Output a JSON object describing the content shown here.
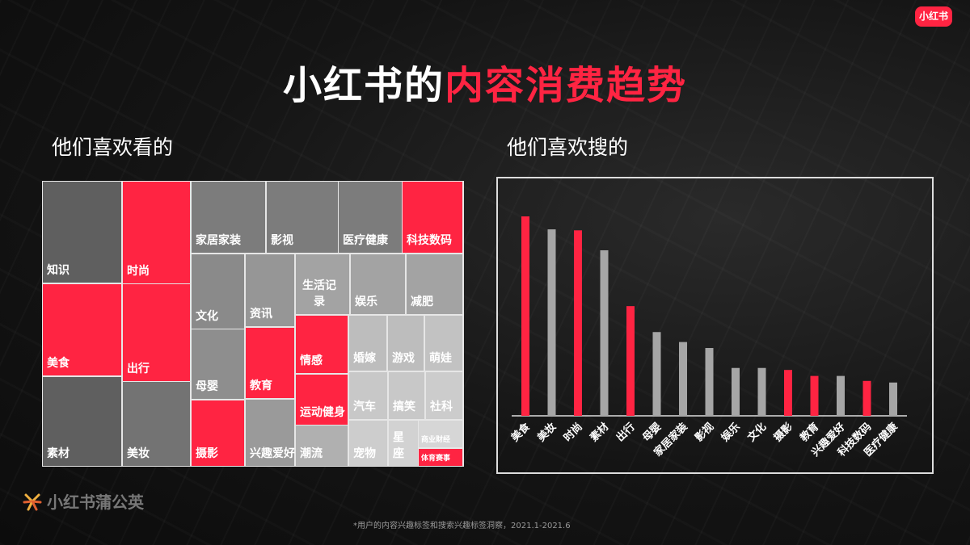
{
  "header": {
    "title_plain": "小红书的",
    "title_highlight": "内容消费趋势",
    "brand_badge": "小红书"
  },
  "left_panel": {
    "subtitle": "他们喜欢看的"
  },
  "right_panel": {
    "subtitle": "他们喜欢搜的"
  },
  "colors": {
    "highlight": "#ff2442",
    "neutral": "#a6a6a6"
  },
  "treemap": {
    "tiles": [
      {
        "label": "知识",
        "highlight": false
      },
      {
        "label": "美食",
        "highlight": true
      },
      {
        "label": "素材",
        "highlight": false
      },
      {
        "label": "时尚",
        "highlight": true
      },
      {
        "label": "出行",
        "highlight": true
      },
      {
        "label": "美妆",
        "highlight": false
      },
      {
        "label": "家居家装",
        "highlight": false
      },
      {
        "label": "影视",
        "highlight": false
      },
      {
        "label": "医疗健康",
        "highlight": false
      },
      {
        "label": "科技数码",
        "highlight": true
      },
      {
        "label": "文化",
        "highlight": false
      },
      {
        "label": "资讯",
        "highlight": false
      },
      {
        "label": "生活记录",
        "highlight": false
      },
      {
        "label": "娱乐",
        "highlight": false
      },
      {
        "label": "减肥",
        "highlight": false
      },
      {
        "label": "母婴",
        "highlight": false
      },
      {
        "label": "教育",
        "highlight": true
      },
      {
        "label": "摄影",
        "highlight": true
      },
      {
        "label": "兴趣爱好",
        "highlight": false
      },
      {
        "label": "情感",
        "highlight": true
      },
      {
        "label": "运动健身",
        "highlight": true
      },
      {
        "label": "潮流",
        "highlight": false
      },
      {
        "label": "婚嫁",
        "highlight": false
      },
      {
        "label": "游戏",
        "highlight": false
      },
      {
        "label": "萌娃",
        "highlight": false
      },
      {
        "label": "汽车",
        "highlight": false
      },
      {
        "label": "搞笑",
        "highlight": false
      },
      {
        "label": "社科",
        "highlight": false
      },
      {
        "label": "宠物",
        "highlight": false
      },
      {
        "label": "星座",
        "highlight": false
      },
      {
        "label": "商业财经",
        "highlight": false
      },
      {
        "label": "体育赛事",
        "highlight": true
      }
    ]
  },
  "chart_data": {
    "type": "bar",
    "title": "他们喜欢搜的",
    "xlabel": "",
    "ylabel": "",
    "categories": [
      "美食",
      "美妆",
      "时尚",
      "素材",
      "出行",
      "母婴",
      "家居家装",
      "影视",
      "娱乐",
      "文化",
      "摄影",
      "教育",
      "兴趣爱好",
      "科技数码",
      "医疗健康"
    ],
    "values": [
      100,
      93.5,
      93,
      83,
      55,
      42,
      37,
      34,
      24,
      24,
      23,
      20,
      20,
      17.5,
      16.7
    ],
    "highlight": [
      true,
      false,
      true,
      false,
      true,
      false,
      false,
      false,
      false,
      false,
      true,
      true,
      false,
      true,
      false
    ],
    "ylim": [
      0,
      100
    ],
    "grid": false
  },
  "footer": {
    "logo_text": "小红书蒲公英",
    "footnote": "*用户的内容兴趣标签和搜索兴趣标签洞察，2021.1-2021.6"
  }
}
